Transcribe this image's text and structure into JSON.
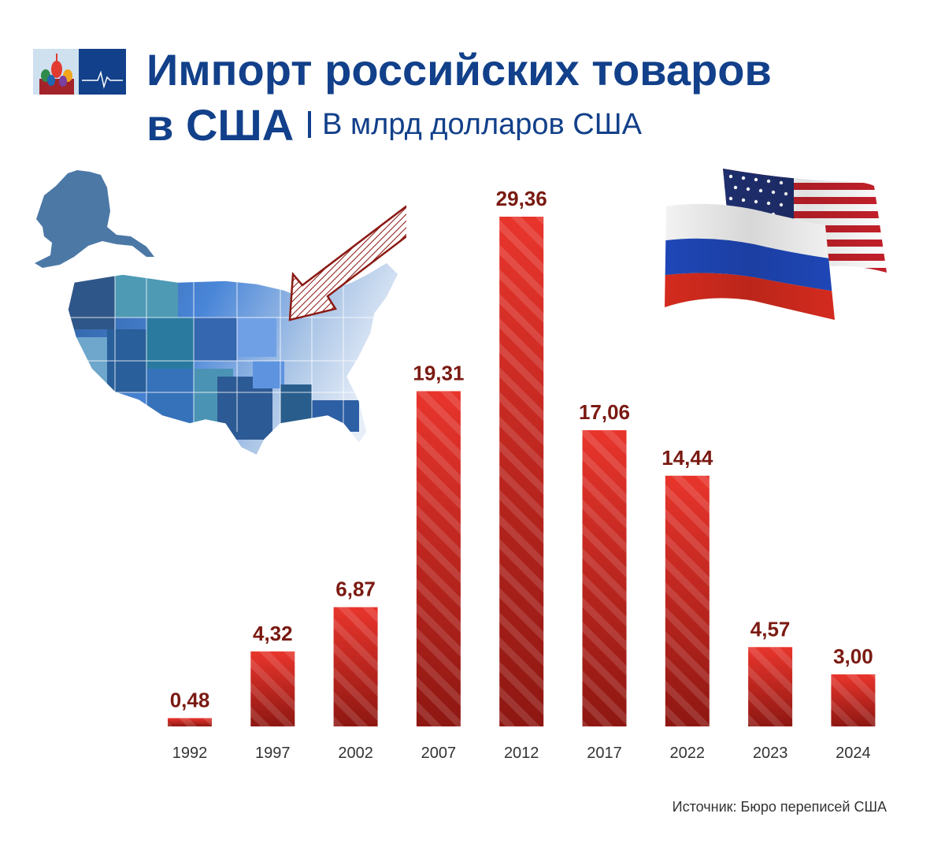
{
  "title": {
    "line1": "Импорт российских товаров",
    "line2": "в США",
    "subtitle": "В млрд долларов США"
  },
  "source": "Источник: Бюро переписей США",
  "icons": [
    "logo-icon",
    "us-map-icon",
    "arrow-icon",
    "us-flag-icon",
    "russia-flag-icon"
  ],
  "colors": {
    "title": "#12408a",
    "bar_dark": "#8e1712",
    "bar_bright": "#e8352c",
    "value_label": "#7a1a12",
    "year_label": "#333333"
  },
  "chart_data": {
    "type": "bar",
    "categories": [
      "1992",
      "1997",
      "2002",
      "2007",
      "2012",
      "2017",
      "2022",
      "2023",
      "2024"
    ],
    "values": [
      0.48,
      4.32,
      6.87,
      19.31,
      29.36,
      17.06,
      14.44,
      4.57,
      3.0
    ],
    "value_labels": [
      "0,48",
      "4,32",
      "6,87",
      "19,31",
      "29,36",
      "17,06",
      "14,44",
      "4,57",
      "3,00"
    ],
    "title": "Импорт российских товаров в США",
    "ylabel": "В млрд долларов США",
    "ylim": [
      0,
      29.36
    ],
    "grid": false,
    "legend": "none"
  }
}
